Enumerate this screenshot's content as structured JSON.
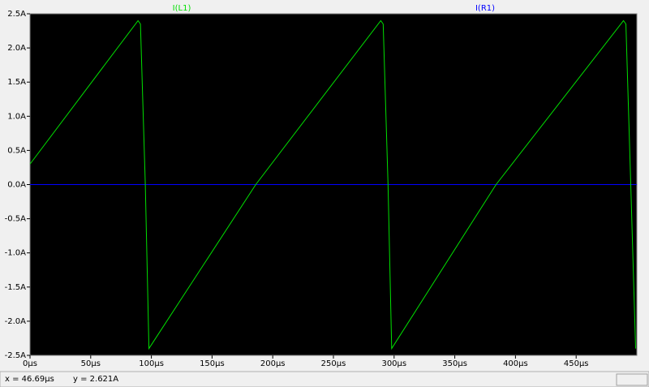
{
  "chart_data": {
    "type": "line",
    "series": [
      {
        "name": "I(L1)",
        "color": "#00e000",
        "x": [
          0,
          89,
          91,
          95,
          98,
          186,
          289,
          291,
          295,
          298,
          384,
          489,
          491,
          495,
          499
        ],
        "values": [
          0.3,
          2.4,
          2.35,
          0,
          -2.4,
          0,
          2.4,
          2.35,
          0,
          -2.4,
          0,
          2.4,
          2.35,
          0,
          -2.4
        ]
      },
      {
        "name": "I(R1)",
        "color": "#0000ff",
        "x": [
          0,
          500
        ],
        "values": [
          0,
          0
        ]
      }
    ],
    "xlim": [
      0,
      500
    ],
    "xticks": [
      {
        "value": 0,
        "label": "0µs"
      },
      {
        "value": 50,
        "label": "50µs"
      },
      {
        "value": 100,
        "label": "100µs"
      },
      {
        "value": 150,
        "label": "150µs"
      },
      {
        "value": 200,
        "label": "200µs"
      },
      {
        "value": 250,
        "label": "250µs"
      },
      {
        "value": 300,
        "label": "300µs"
      },
      {
        "value": 350,
        "label": "350µs"
      },
      {
        "value": 400,
        "label": "400µs"
      },
      {
        "value": 450,
        "label": "450µs"
      }
    ],
    "ylim": [
      -2.5,
      2.5
    ],
    "yticks": [
      {
        "value": 2.5,
        "label": "2.5A"
      },
      {
        "value": 2.0,
        "label": "2.0A"
      },
      {
        "value": 1.5,
        "label": "1.5A"
      },
      {
        "value": 1.0,
        "label": "1.0A"
      },
      {
        "value": 0.5,
        "label": "0.5A"
      },
      {
        "value": 0.0,
        "label": "0.0A"
      },
      {
        "value": -0.5,
        "label": "-0.5A"
      },
      {
        "value": -1.0,
        "label": "-1.0A"
      },
      {
        "value": -1.5,
        "label": "-1.5A"
      },
      {
        "value": -2.0,
        "label": "-2.0A"
      },
      {
        "value": -2.5,
        "label": "-2.5A"
      }
    ],
    "legend": "top"
  },
  "status_bar": {
    "cursor_x": "x = 46.69µs",
    "cursor_y": "y = 2.621A"
  }
}
